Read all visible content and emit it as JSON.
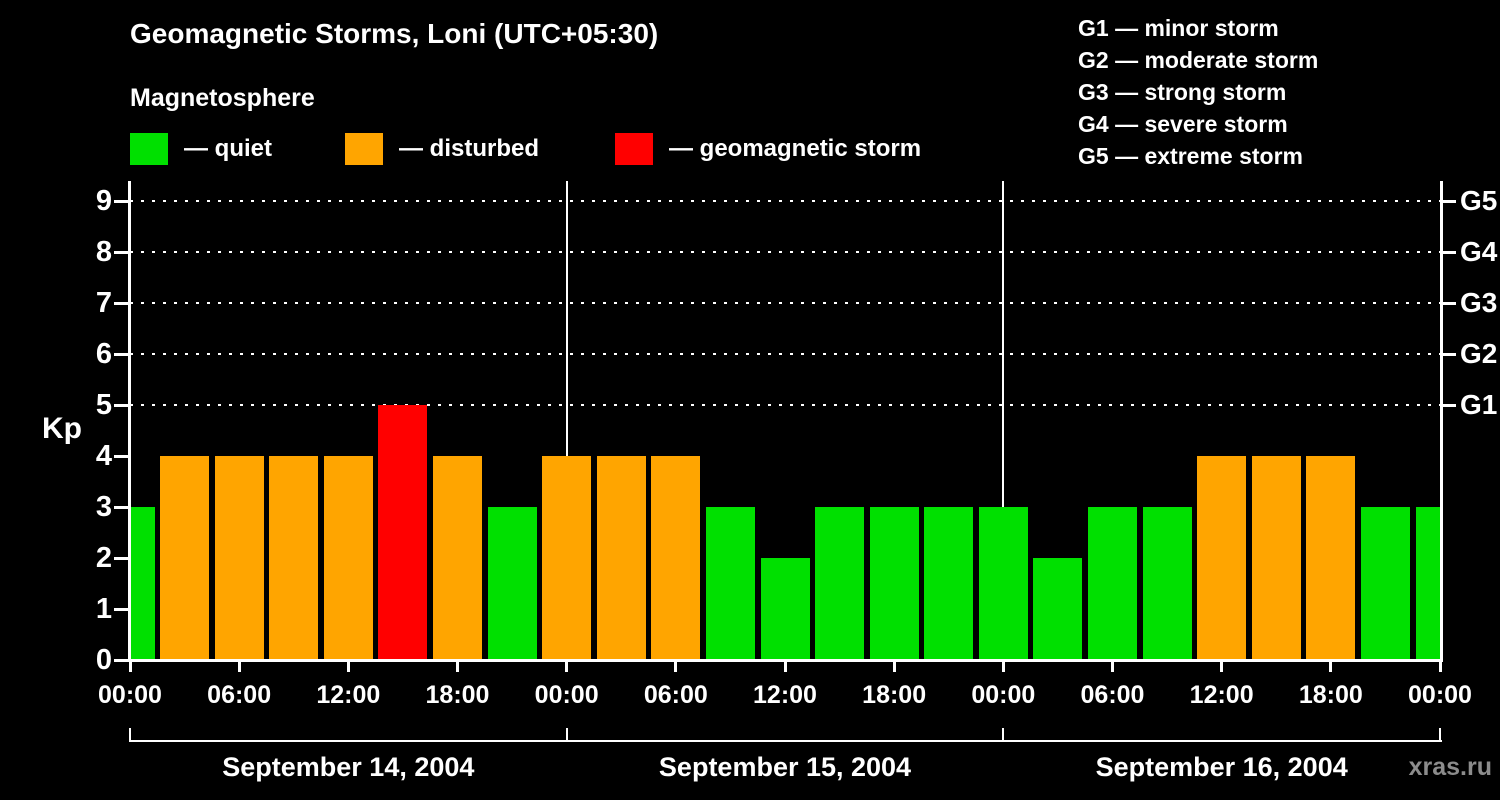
{
  "title": "Geomagnetic Storms, Loni (UTC+05:30)",
  "subtitle": "Magnetosphere",
  "legend": [
    {
      "name": "quiet",
      "label": "— quiet",
      "color": "#00e000"
    },
    {
      "name": "disturbed",
      "label": "— disturbed",
      "color": "#ffa500"
    },
    {
      "name": "storm",
      "label": "— geomagnetic storm",
      "color": "#ff0000"
    }
  ],
  "g_legend": [
    "G1 — minor storm",
    "G2 — moderate storm",
    "G3 — strong storm",
    "G4 — severe storm",
    "G5 — extreme storm"
  ],
  "y_axis": {
    "label": "Kp",
    "ticks": [
      0,
      1,
      2,
      3,
      4,
      5,
      6,
      7,
      8,
      9
    ],
    "max": 9
  },
  "right_axis": [
    {
      "kp": 5,
      "label": "G1"
    },
    {
      "kp": 6,
      "label": "G2"
    },
    {
      "kp": 7,
      "label": "G3"
    },
    {
      "kp": 8,
      "label": "G4"
    },
    {
      "kp": 9,
      "label": "G5"
    }
  ],
  "x_axis": {
    "tick_labels": [
      "00:00",
      "06:00",
      "12:00",
      "18:00",
      "00:00",
      "06:00",
      "12:00",
      "18:00",
      "00:00",
      "06:00",
      "12:00",
      "18:00",
      "00:00"
    ]
  },
  "watermark": "xras.ru",
  "colors": {
    "quiet": "#00e000",
    "disturbed": "#ffa500",
    "storm": "#ff0000",
    "axis": "#ffffff",
    "background": "#000000",
    "watermark": "#8c8c8c"
  },
  "chart_data": {
    "type": "bar",
    "title": "Geomagnetic Storms, Loni (UTC+05:30)",
    "ylabel": "Kp",
    "ylim": [
      0,
      9
    ],
    "bar_interval_hours": 3,
    "gridlines_kp": [
      5,
      6,
      7,
      8,
      9
    ],
    "thresholds": {
      "quiet_max_kp": 3,
      "disturbed_kp": 4,
      "storm_min_kp": 5
    },
    "days": [
      {
        "date": "September 14, 2004",
        "kp": [
          3,
          4,
          4,
          4,
          4,
          5,
          4,
          3
        ]
      },
      {
        "date": "September 15, 2004",
        "kp": [
          4,
          4,
          4,
          3,
          2,
          3,
          3,
          3
        ]
      },
      {
        "date": "September 16, 2004",
        "kp": [
          3,
          2,
          3,
          3,
          4,
          4,
          4,
          3
        ]
      }
    ],
    "trailing_partial_kp": 3,
    "legend_position": "top-left",
    "grid": "dotted horizontal at Kp 5-9"
  }
}
